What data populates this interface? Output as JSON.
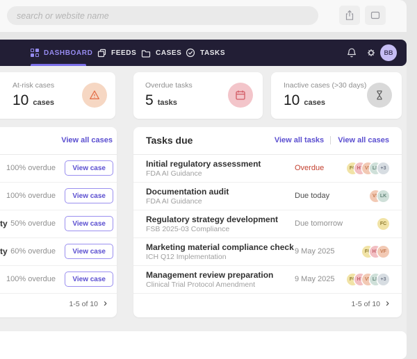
{
  "browser": {
    "search_placeholder": "search or website name"
  },
  "nav": {
    "tabs": [
      {
        "label": "DASHBOARD",
        "active": true
      },
      {
        "label": "FEEDS",
        "active": false
      },
      {
        "label": "CASES",
        "active": false
      },
      {
        "label": "TASKS",
        "active": false
      }
    ],
    "avatar_initials": "BB"
  },
  "stats": [
    {
      "label": "At-risk cases",
      "value": "10",
      "unit": "cases",
      "icon": "warning-triangle-icon",
      "icon_bg": "#f6d7c3",
      "icon_color": "#e4714b"
    },
    {
      "label": "Overdue tasks",
      "value": "5",
      "unit": "tasks",
      "icon": "calendar-icon",
      "icon_bg": "#f3c5ca",
      "icon_color": "#d25b65"
    },
    {
      "label": "Inactive cases (>30 days)",
      "value": "10",
      "unit": "cases",
      "icon": "hourglass-icon",
      "icon_bg": "#d9d9d9",
      "icon_color": "#5f5f5f"
    }
  ],
  "cases_panel": {
    "view_all_label": "View all cases",
    "rows": [
      {
        "name_fragment": "",
        "overdue": "100% overdue",
        "action": "View case"
      },
      {
        "name_fragment": "",
        "overdue": "100% overdue",
        "action": "View case"
      },
      {
        "name_fragment": "ty",
        "overdue": "50% overdue",
        "action": "View case"
      },
      {
        "name_fragment": "ty",
        "overdue": "60% overdue",
        "action": "View case"
      },
      {
        "name_fragment": "",
        "overdue": "100% overdue",
        "action": "View case"
      }
    ],
    "pagination": "1-5 of 10"
  },
  "tasks_panel": {
    "title": "Tasks due",
    "view_all_tasks_label": "View all tasks",
    "view_all_cases_label": "View all cases",
    "rows": [
      {
        "title": "Initial regulatory assessment",
        "subtitle": "FDA AI Guidance",
        "status": "Overdue",
        "status_style": "overdue",
        "avatars": [
          "FC",
          "HS",
          "VF",
          "LK",
          "+3"
        ]
      },
      {
        "title": "Documentation audit",
        "subtitle": "FDA AI Guidance",
        "status": "Due today",
        "status_style": "strong",
        "avatars": [
          "VF",
          "LK"
        ]
      },
      {
        "title": "Regulatory strategy development",
        "subtitle": "FSB 2025-03 Compliance",
        "status": "Due tomorrow",
        "status_style": "muted",
        "avatars": [
          "FC"
        ]
      },
      {
        "title": "Marketing material compliance check",
        "subtitle": "ICH Q12 Implementation",
        "status": "9 May 2025",
        "status_style": "muted",
        "avatars": [
          "FC",
          "HS",
          "VF"
        ]
      },
      {
        "title": "Management review preparation",
        "subtitle": "Clinical Trial Protocol Amendment",
        "status": "9 May 2025",
        "status_style": "muted",
        "avatars": [
          "FC",
          "HS",
          "VF",
          "LK",
          "+3"
        ]
      }
    ],
    "pagination": "1-5 of 10"
  },
  "avatar_palette": {
    "FC": {
      "bg": "#f1e3a6",
      "fg": "#8f7c33"
    },
    "HS": {
      "bg": "#f2bfc3",
      "fg": "#c4606a"
    },
    "VF": {
      "bg": "#f2c9b4",
      "fg": "#c47a50"
    },
    "LK": {
      "bg": "#cfe0d9",
      "fg": "#64867a"
    },
    "+3": {
      "bg": "#d7dde2",
      "fg": "#71798a"
    }
  },
  "colors": {
    "accent_purple": "#5b4fd0",
    "nav_bg": "#221e35",
    "active_tab": "#968bf0",
    "overdue_red": "#c3402f"
  }
}
